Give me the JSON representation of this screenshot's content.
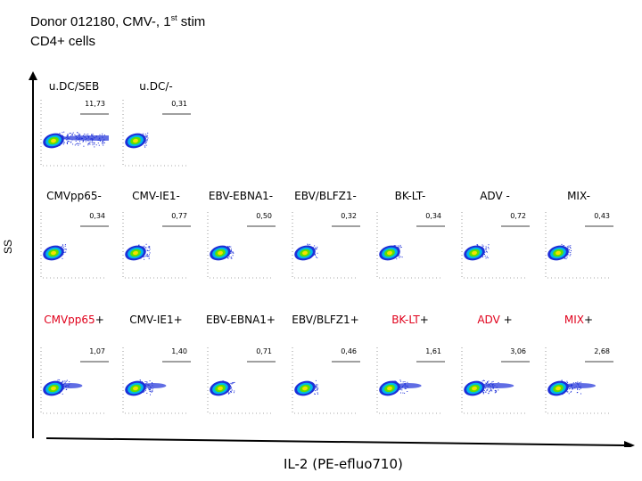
{
  "header": {
    "title_line1_pre": "Donor 012180, CMV-, 1",
    "title_line1_sup": "st",
    "title_line1_post": " stim",
    "title_line2": "CD4+ cells"
  },
  "axes": {
    "y_label": "SS",
    "x_label": "IL-2 (PE-efluo710)"
  },
  "rows": [
    {
      "row": "controls",
      "plots": [
        {
          "label_parts": [
            {
              "text": "u.DC/SEB",
              "red": false
            }
          ],
          "freq": "11,73"
        },
        {
          "label_parts": [
            {
              "text": "u.DC/-",
              "red": false
            }
          ],
          "freq": "0,31"
        }
      ]
    },
    {
      "row": "unstim",
      "plots": [
        {
          "label_parts": [
            {
              "text": "CMVpp65-",
              "red": false
            }
          ],
          "freq": "0,34"
        },
        {
          "label_parts": [
            {
              "text": "CMV-IE1-",
              "red": false
            }
          ],
          "freq": "0,77"
        },
        {
          "label_parts": [
            {
              "text": "EBV-EBNA1-",
              "red": false
            }
          ],
          "freq": "0,50"
        },
        {
          "label_parts": [
            {
              "text": "EBV/BLFZ1-",
              "red": false
            }
          ],
          "freq": "0,32"
        },
        {
          "label_parts": [
            {
              "text": "BK-LT-",
              "red": false
            }
          ],
          "freq": "0,34"
        },
        {
          "label_parts": [
            {
              "text": "ADV -",
              "red": false
            }
          ],
          "freq": "0,72"
        },
        {
          "label_parts": [
            {
              "text": "MIX-",
              "red": false
            }
          ],
          "freq": "0,43"
        }
      ]
    },
    {
      "row": "stim",
      "plots": [
        {
          "label_parts": [
            {
              "text": "CMVpp65",
              "red": true
            },
            {
              "text": "+",
              "red": false
            }
          ],
          "freq": "1,07"
        },
        {
          "label_parts": [
            {
              "text": "CMV-IE1+",
              "red": false
            }
          ],
          "freq": "1,40"
        },
        {
          "label_parts": [
            {
              "text": "EBV-EBNA1+",
              "red": false
            }
          ],
          "freq": "0,71"
        },
        {
          "label_parts": [
            {
              "text": "EBV/BLFZ1+",
              "red": false
            }
          ],
          "freq": "0,46"
        },
        {
          "label_parts": [
            {
              "text": "BK-LT",
              "red": true
            },
            {
              "text": "+",
              "red": false
            }
          ],
          "freq": "1,61"
        },
        {
          "label_parts": [
            {
              "text": "ADV",
              "red": true
            },
            {
              "text": " +",
              "red": false
            }
          ],
          "freq": "3,06"
        },
        {
          "label_parts": [
            {
              "text": "MIX",
              "red": true
            },
            {
              "text": "+",
              "red": false
            }
          ],
          "freq": "2,68"
        }
      ]
    }
  ],
  "colors": {
    "highlight_red": "#e0001b",
    "density_low": "#1d2fd8",
    "density_mid": "#00b7e8",
    "density_high": "#5fe000",
    "density_core": "#f6e000"
  }
}
